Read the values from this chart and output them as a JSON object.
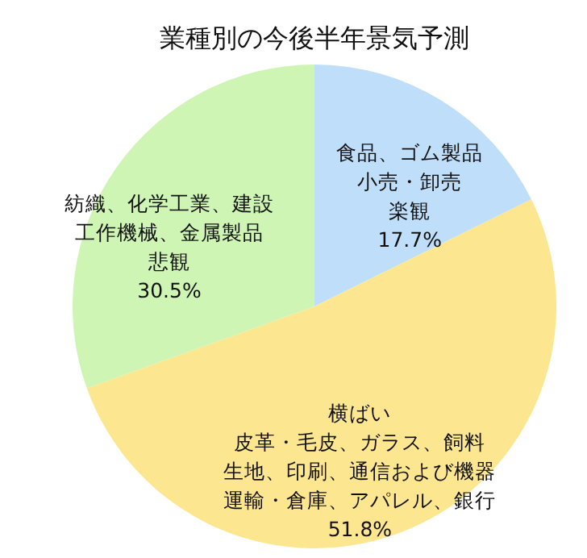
{
  "chart_data": {
    "type": "pie",
    "title": "業種別の今後半年景気予測",
    "categories": [
      "食品、ゴム製品小売・卸売楽観",
      "横ばい皮革・毛皮、ガラス、飼料生地、印刷、通信および機器運輸・倉庫、アパレル、銀行",
      "紡織、化学工業、建設工作機械、金属製品悲観"
    ],
    "values": [
      17.7,
      51.8,
      30.5
    ],
    "value_labels": [
      "17.7%",
      "51.8%",
      "30.5%"
    ],
    "colors": [
      "#bfdefa",
      "#fde690",
      "#cff5b4"
    ]
  }
}
